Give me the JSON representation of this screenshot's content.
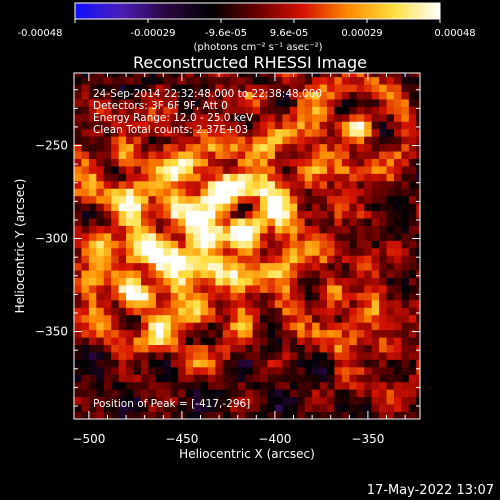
{
  "colorbar": {
    "tick_labels": [
      "-0.00048",
      "-0.00029",
      "-9.6e-05",
      "9.6e-05",
      "0.00029",
      "0.00048"
    ],
    "range": [
      -0.00048,
      0.00048
    ],
    "unit_label": "(photons cm⁻² s⁻¹ asec⁻²)",
    "colors": [
      "#1010ff",
      "#4a1eb8",
      "#2a0740",
      "#000000",
      "#6a0000",
      "#d41200",
      "#ff8a00",
      "#ffe040",
      "#ffffff"
    ]
  },
  "chart_data": {
    "type": "heatmap",
    "title": "Reconstructed RHESSI Image",
    "xlabel": "Heliocentric X (arcsec)",
    "ylabel": "Heliocentric Y (arcsec)",
    "xlim": [
      -508,
      -322
    ],
    "ylim": [
      -397,
      -211
    ],
    "x_ticks": [
      -500,
      -450,
      -400,
      -350
    ],
    "y_ticks": [
      -250,
      -300,
      -350
    ],
    "x_tick_labels": [
      "−500",
      "−450",
      "−400",
      "−350"
    ],
    "y_tick_labels": [
      "−250",
      "−300",
      "−350"
    ],
    "peak": {
      "x": -417,
      "y": -296
    },
    "pixel_size_arcsec": 4,
    "annotations": {
      "time": "24-Sep-2014 22:32:48.000 to 22:38:48.000",
      "detectors": "Detectors: 3F 6F 9F, Att 0",
      "energy": "Energy Range: 12.0 - 25.0 keV",
      "clean": "Clean     Total counts: 2.37E+03",
      "peak_text": "Position of Peak = [-417,-296]"
    },
    "sources": [
      {
        "x": -417,
        "y": -296,
        "amp": 1.0
      },
      {
        "x": -475,
        "y": -330,
        "amp": 0.95
      },
      {
        "x": -440,
        "y": -340,
        "amp": 0.7
      },
      {
        "x": -455,
        "y": -285,
        "amp": 0.75
      },
      {
        "x": -425,
        "y": -275,
        "amp": 0.7
      },
      {
        "x": -480,
        "y": -255,
        "amp": 0.6
      },
      {
        "x": -355,
        "y": -240,
        "amp": 0.85
      },
      {
        "x": -370,
        "y": -330,
        "amp": 0.7
      },
      {
        "x": -340,
        "y": -360,
        "amp": 0.5
      },
      {
        "x": -495,
        "y": -300,
        "amp": 0.5
      },
      {
        "x": -385,
        "y": -265,
        "amp": 0.35
      },
      {
        "x": -410,
        "y": -225,
        "amp": 0.4
      }
    ]
  },
  "footer": {
    "date": "17-May-2022 13:07"
  }
}
